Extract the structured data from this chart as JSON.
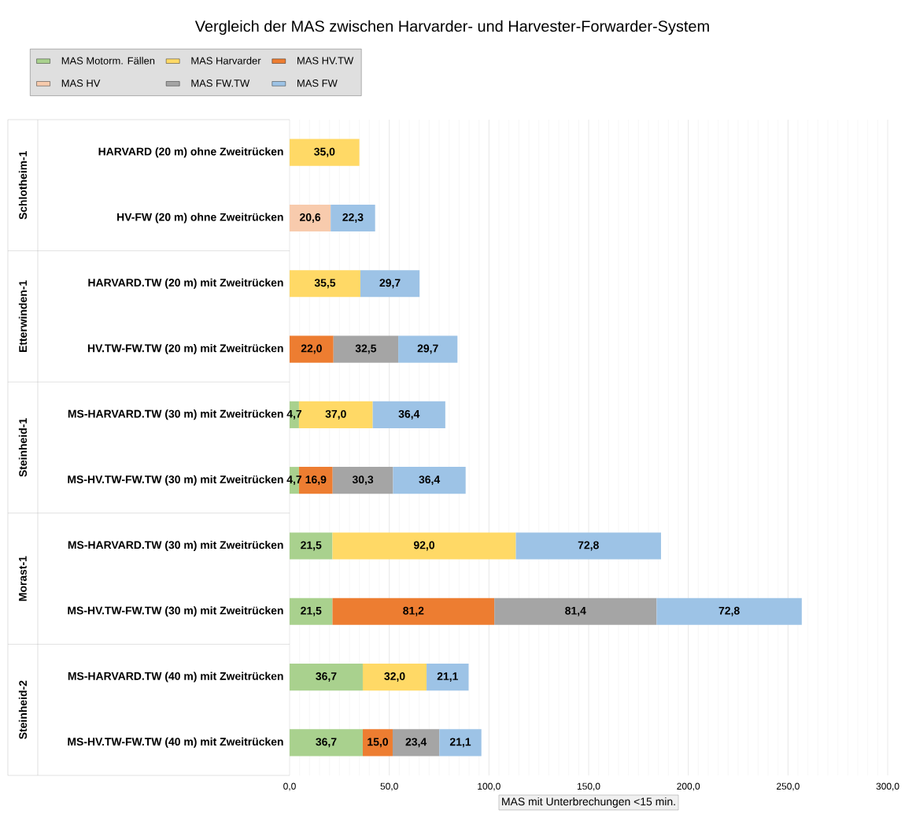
{
  "chart_data": {
    "type": "bar",
    "orientation": "horizontal",
    "stacked": true,
    "title": "Vergleich der MAS zwischen Harvarder- und Harvester-Forwarder-System",
    "xlabel": "MAS mit Unterbrechungen <15 min.",
    "categories": [
      "HARVARD (20 m) ohne Zweitrücken",
      "HV-FW (20 m) ohne Zweitrücken",
      "HARVARD.TW (20 m) mit Zweitrücken",
      "HV.TW-FW.TW (20 m) mit Zweitrücken",
      "MS-HARVARD.TW (30 m) mit Zweitrücken",
      "MS-HV.TW-FW.TW (30 m) mit Zweitrücken",
      "MS-HARVARD.TW (30 m) mit Zweitrücken",
      "MS-HV.TW-FW.TW (30 m) mit Zweitrücken",
      "MS-HARVARD.TW (40 m) mit Zweitrücken",
      "MS-HV.TW-FW.TW (40 m) mit Zweitrücken"
    ],
    "annotations": [
      "Schlotheim-1",
      "Etterwinden-1",
      "Steinheid-1",
      "Morast-1",
      "Steinheid-2"
    ],
    "series": [
      {
        "name": "MAS  Motorm. Fällen",
        "color": "#a9d18e",
        "values": [
          null,
          null,
          null,
          null,
          4.7,
          4.7,
          21.5,
          21.5,
          36.7,
          36.7
        ],
        "value_labels": [
          null,
          null,
          null,
          null,
          "4,7",
          "4,7",
          "21,5",
          "21,5",
          "36,7",
          "36,7"
        ]
      },
      {
        "name": "MAS  Harvarder",
        "color": "#ffd966",
        "values": [
          35.0,
          null,
          35.5,
          null,
          37.0,
          null,
          92.0,
          null,
          32.0,
          null
        ],
        "value_labels": [
          "35,0",
          null,
          "35,5",
          null,
          "37,0",
          null,
          "92,0",
          null,
          "32,0",
          null
        ]
      },
      {
        "name": "MAS  HV.TW",
        "color": "#ed7d31",
        "values": [
          null,
          null,
          null,
          22.0,
          null,
          16.9,
          null,
          81.2,
          null,
          15.0
        ],
        "value_labels": [
          null,
          null,
          null,
          "22,0",
          null,
          "16,9",
          null,
          "81,2",
          null,
          "15,0"
        ]
      },
      {
        "name": "MAS  HV",
        "color": "#f8cbad",
        "values": [
          null,
          20.6,
          null,
          null,
          null,
          null,
          null,
          null,
          null,
          null
        ],
        "value_labels": [
          null,
          "20,6",
          null,
          null,
          null,
          null,
          null,
          null,
          null,
          null
        ]
      },
      {
        "name": "MAS  FW.TW",
        "color": "#a5a5a5",
        "values": [
          null,
          null,
          null,
          32.5,
          null,
          30.3,
          null,
          81.4,
          null,
          23.4
        ],
        "value_labels": [
          null,
          null,
          null,
          "32,5",
          null,
          "30,3",
          null,
          "81,4",
          null,
          "23,4"
        ]
      },
      {
        "name": "MAS  FW",
        "color": "#9dc3e6",
        "values": [
          null,
          22.3,
          29.7,
          29.7,
          36.4,
          36.4,
          72.8,
          72.8,
          21.1,
          21.1
        ],
        "value_labels": [
          null,
          "22,3",
          "29,7",
          "29,7",
          "36,4",
          "36,4",
          "72,8",
          "72,8",
          "21,1",
          "21,1"
        ]
      }
    ],
    "xlim": [
      0,
      300
    ],
    "xticks": [
      {
        "value": 0,
        "label": "0,0"
      },
      {
        "value": 50,
        "label": "50,0"
      },
      {
        "value": 100,
        "label": "100,0"
      },
      {
        "value": 150,
        "label": "150,0"
      },
      {
        "value": 200,
        "label": "200,0"
      },
      {
        "value": 250,
        "label": "250,0"
      },
      {
        "value": 300,
        "label": "300,0"
      }
    ],
    "grid": "x",
    "legend": "top left"
  }
}
